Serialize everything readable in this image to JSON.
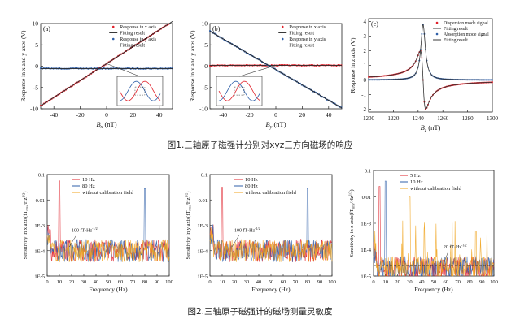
{
  "captions": {
    "fig1": "图1.三轴原子磁强计分别对xyz三方向磁场的响应",
    "fig2": "图2.三轴原子磁强计的磁场测量灵敏度"
  },
  "colors": {
    "red": "#e0202a",
    "blue": "#2f5fa8",
    "black": "#222222",
    "orange": "#f0a31c",
    "gray": "#9aa5b5"
  },
  "chart_data": [
    {
      "id": "a",
      "type": "line",
      "panel_label": "(a)",
      "xlabel_main": "B",
      "xlabel_sub": "x",
      "xlabel_unit": "(nT)",
      "ylabel": "Response in x and y axes (V)",
      "xlim": [
        -50,
        50
      ],
      "ylim": [
        -10,
        10
      ],
      "xticks": [
        -40,
        -20,
        0,
        20,
        40
      ],
      "yticks": [
        -10,
        -5,
        0,
        5,
        10
      ],
      "legend": [
        "Response in x axis",
        "Fitting result",
        "Response in y axis",
        "Fitting result"
      ],
      "series": [
        {
          "name": "Response in x axis",
          "style": "dots",
          "color": "red",
          "slope": 0.198,
          "intercept": 0.6
        },
        {
          "name": "Fitting result",
          "style": "line",
          "color": "black",
          "slope": 0.198,
          "intercept": 0.6
        },
        {
          "name": "Response in y axis",
          "style": "dots",
          "color": "blue",
          "slope": 0.0,
          "intercept": -0.55
        },
        {
          "name": "Fitting result",
          "style": "line",
          "color": "black",
          "slope": 0.0,
          "intercept": -0.55
        }
      ]
    },
    {
      "id": "b",
      "type": "line",
      "panel_label": "(b)",
      "xlabel_main": "B",
      "xlabel_sub": "y",
      "xlabel_unit": "(nT)",
      "ylabel": "Response in x and y axes (V)",
      "xlim": [
        -50,
        50
      ],
      "ylim": [
        -10,
        10
      ],
      "xticks": [
        -40,
        -20,
        0,
        20,
        40
      ],
      "yticks": [
        -10,
        -5,
        0,
        5,
        10
      ],
      "legend": [
        "Response in x axis",
        "Fitting result",
        "Response in y axis",
        "Fitting result"
      ],
      "series": [
        {
          "name": "Response in x axis",
          "style": "dots",
          "color": "red",
          "slope": 0.0,
          "intercept": 0.2
        },
        {
          "name": "Fitting result",
          "style": "line",
          "color": "black",
          "slope": 0.0,
          "intercept": 0.2
        },
        {
          "name": "Response in y axis",
          "style": "dots",
          "color": "blue",
          "slope": -0.18,
          "intercept": -0.8
        },
        {
          "name": "Fitting result",
          "style": "line",
          "color": "black",
          "slope": -0.18,
          "intercept": -0.8
        }
      ]
    },
    {
      "id": "c",
      "type": "line",
      "panel_label": "(c)",
      "xlabel_main": "B",
      "xlabel_sub": "z",
      "xlabel_unit": "(nT)",
      "ylabel": "Response in z axis (V)",
      "xlim": [
        1200,
        1300
      ],
      "ylim": [
        -2.2,
        4.2
      ],
      "xticks": [
        1200,
        1220,
        1240,
        1260,
        1280,
        1300
      ],
      "yticks": [
        -2,
        -1,
        0,
        1,
        2,
        3,
        4
      ],
      "legend": [
        "Dispersion mode signal",
        "Fitting result",
        "Absorption mode signal",
        "Fitting result"
      ],
      "center": 1244,
      "width": 2.2,
      "dispersion_amp": 2.0,
      "absorption_amp": 3.8
    },
    {
      "id": "d",
      "type": "line",
      "ylabel": "Sensitivity in x axis(fT",
      "xlabel": "Frequency (Hz)",
      "xlim": [
        0,
        100
      ],
      "ylim_exp": [
        -5,
        -1
      ],
      "xticks": [
        0,
        10,
        20,
        30,
        40,
        50,
        60,
        70,
        80,
        90,
        100
      ],
      "yticks": [
        "1E-5",
        "1E-4",
        "1E-3",
        "0.01",
        "0.1"
      ],
      "legend": [
        "10 Hz",
        "80 Hz",
        "without calibration field"
      ],
      "annotation": "100 fT·Hz",
      "noise_floor_exp": -4,
      "peaks": [
        {
          "series": "10 Hz",
          "f": 10,
          "value_exp": -1.25
        },
        {
          "series": "80 Hz",
          "f": 80,
          "value_exp": -1.55
        }
      ]
    },
    {
      "id": "e",
      "type": "line",
      "ylabel": "Sensitivity in y axis(fT",
      "xlabel": "Frequency (Hz)",
      "xlim": [
        0,
        100
      ],
      "ylim_exp": [
        -5,
        -1
      ],
      "xticks": [
        0,
        10,
        20,
        30,
        40,
        50,
        60,
        70,
        80,
        90,
        100
      ],
      "yticks": [
        "1E-5",
        "1E-4",
        "1E-3",
        "0.01",
        "0.1"
      ],
      "legend": [
        "10 Hz",
        "80 Hz",
        "without calibration field"
      ],
      "annotation": "100 fT·Hz",
      "noise_floor_exp": -4,
      "peaks": [
        {
          "series": "10 Hz",
          "f": 10,
          "value_exp": -1.5
        },
        {
          "series": "80 Hz",
          "f": 80,
          "value_exp": -1.55
        }
      ]
    },
    {
      "id": "f",
      "type": "line",
      "ylabel": "Sensitivity in z axis(fT",
      "xlabel": "Frequency (Hz)",
      "xlim": [
        0,
        100
      ],
      "ylim_exp": [
        -5,
        -1
      ],
      "xticks": [
        0,
        10,
        20,
        30,
        40,
        50,
        60,
        70,
        80,
        90,
        100
      ],
      "yticks": [
        "1E-5",
        "1E-4",
        "1E-3",
        "0.01",
        "0.1"
      ],
      "legend": [
        "5 Hz",
        "10 Hz",
        "without calibration field"
      ],
      "annotation": "20 fT·Hz",
      "noise_floor_exp": -4.7,
      "peaks": [
        {
          "series": "5 Hz",
          "f": 5,
          "value_exp": -1.6
        },
        {
          "series": "10 Hz",
          "f": 10,
          "value_exp": -1.4
        },
        {
          "series": "without calibration field",
          "f": 30,
          "value_exp": -2.0
        },
        {
          "series": "without calibration field",
          "f": 85,
          "value_exp": -3.3
        }
      ]
    }
  ]
}
